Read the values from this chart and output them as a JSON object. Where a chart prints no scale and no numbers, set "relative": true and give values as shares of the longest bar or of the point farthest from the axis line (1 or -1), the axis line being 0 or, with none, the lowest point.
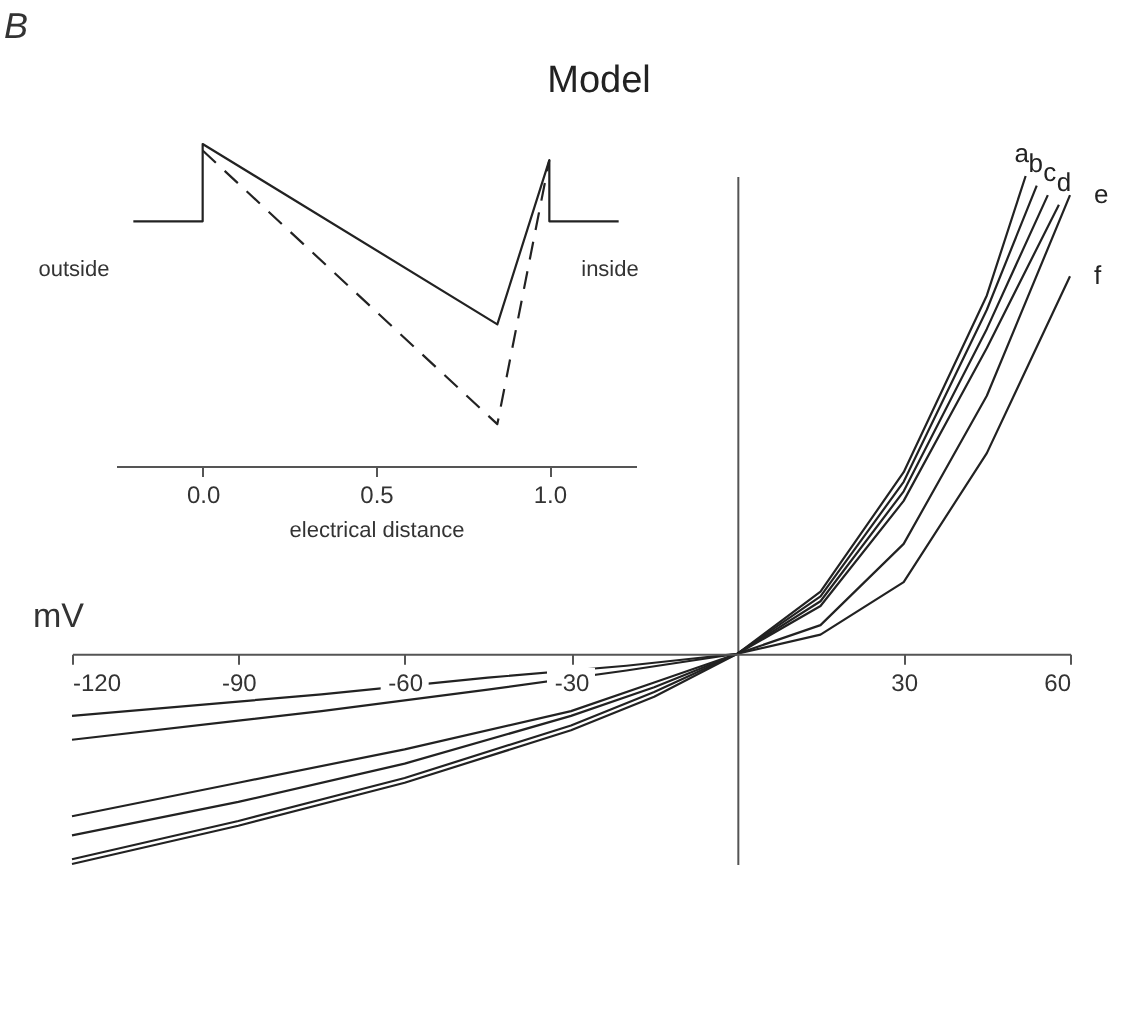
{
  "chart_data": [
    {
      "type": "line",
      "title": "Model",
      "xlabel": "mV",
      "annotations": [
        "B"
      ],
      "relative": true,
      "xlim": [
        -120,
        60
      ],
      "xticks": [
        -120,
        -90,
        -60,
        -30,
        30,
        60
      ],
      "series": [
        {
          "name": "a",
          "color": "#222222",
          "x": [
            -120,
            -90,
            -60,
            -30,
            -15,
            0,
            15,
            30,
            45,
            52
          ],
          "values": [
            -0.44,
            -0.36,
            -0.27,
            -0.16,
            -0.09,
            0,
            0.13,
            0.38,
            0.75,
            1.0
          ]
        },
        {
          "name": "b",
          "color": "#222222",
          "x": [
            -120,
            -90,
            -60,
            -30,
            -15,
            0,
            15,
            30,
            45,
            54
          ],
          "values": [
            -0.43,
            -0.35,
            -0.26,
            -0.15,
            -0.08,
            0,
            0.12,
            0.36,
            0.72,
            0.98
          ]
        },
        {
          "name": "c",
          "color": "#222222",
          "x": [
            -120,
            -90,
            -60,
            -30,
            -15,
            0,
            15,
            30,
            45,
            56
          ],
          "values": [
            -0.38,
            -0.31,
            -0.23,
            -0.13,
            -0.07,
            0,
            0.11,
            0.34,
            0.68,
            0.96
          ]
        },
        {
          "name": "d",
          "color": "#222222",
          "x": [
            -120,
            -90,
            -60,
            -30,
            -15,
            0,
            15,
            30,
            45,
            58
          ],
          "values": [
            -0.34,
            -0.27,
            -0.2,
            -0.12,
            -0.06,
            0,
            0.1,
            0.32,
            0.64,
            0.94
          ]
        },
        {
          "name": "e",
          "color": "#222222",
          "x": [
            -120,
            -90,
            -75,
            -45,
            -20,
            0,
            15,
            30,
            45,
            60
          ],
          "values": [
            -0.18,
            -0.14,
            -0.12,
            -0.075,
            -0.035,
            0,
            0.06,
            0.23,
            0.54,
            0.96
          ]
        },
        {
          "name": "f",
          "color": "#222222",
          "x": [
            -120,
            -90,
            -75,
            -45,
            -20,
            0,
            15,
            30,
            45,
            60
          ],
          "values": [
            -0.13,
            -0.1,
            -0.085,
            -0.05,
            -0.025,
            0,
            0.04,
            0.15,
            0.42,
            0.79
          ]
        }
      ]
    },
    {
      "type": "line",
      "xlabel": "electrical distance",
      "annotations": [
        "outside",
        "inside"
      ],
      "relative": true,
      "xlim": [
        -0.25,
        1.25
      ],
      "xticks": [
        {
          "value": 0,
          "label": "0.0"
        },
        {
          "value": 0.5,
          "label": "0.5"
        },
        {
          "value": 1,
          "label": "1.0"
        }
      ],
      "series": [
        {
          "color": "#222222",
          "line_style": "solid",
          "x": [
            -0.2,
            0,
            0,
            0.85,
            1.0,
            1.0,
            1.2
          ],
          "values": [
            0.76,
            0.76,
            1.0,
            0.44,
            0.95,
            0.76,
            0.76
          ]
        },
        {
          "color": "#222222",
          "line_style": "dashed",
          "x": [
            0,
            0.85,
            1.0
          ],
          "values": [
            0.98,
            0.13,
            0.95
          ]
        }
      ]
    }
  ]
}
